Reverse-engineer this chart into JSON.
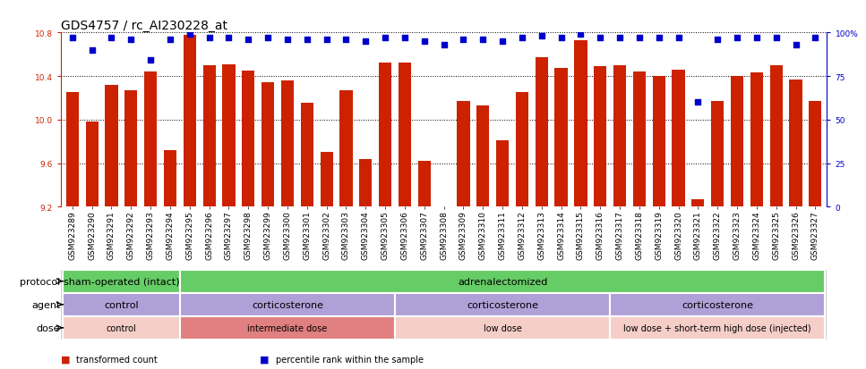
{
  "title": "GDS4757 / rc_AI230228_at",
  "samples": [
    "GSM923289",
    "GSM923290",
    "GSM923291",
    "GSM923292",
    "GSM923293",
    "GSM923294",
    "GSM923295",
    "GSM923296",
    "GSM923297",
    "GSM923298",
    "GSM923299",
    "GSM923300",
    "GSM923301",
    "GSM923302",
    "GSM923303",
    "GSM923304",
    "GSM923305",
    "GSM923306",
    "GSM923307",
    "GSM923308",
    "GSM923309",
    "GSM923310",
    "GSM923311",
    "GSM923312",
    "GSM923313",
    "GSM923314",
    "GSM923315",
    "GSM923316",
    "GSM923317",
    "GSM923318",
    "GSM923319",
    "GSM923320",
    "GSM923321",
    "GSM923322",
    "GSM923323",
    "GSM923324",
    "GSM923325",
    "GSM923326",
    "GSM923327"
  ],
  "bar_values": [
    10.25,
    9.98,
    10.32,
    10.27,
    10.44,
    9.72,
    10.78,
    10.5,
    10.51,
    10.45,
    10.34,
    10.36,
    10.15,
    9.7,
    10.27,
    9.64,
    10.52,
    10.52,
    9.62,
    9.2,
    10.17,
    10.13,
    9.81,
    10.25,
    10.57,
    10.47,
    10.73,
    10.49,
    10.5,
    10.44,
    10.4,
    10.46,
    9.27,
    10.17,
    10.4,
    10.43,
    10.5,
    10.37,
    10.17
  ],
  "percentile_values": [
    97,
    90,
    97,
    96,
    84,
    96,
    99,
    97,
    97,
    96,
    97,
    96,
    96,
    96,
    96,
    95,
    97,
    97,
    95,
    93,
    96,
    96,
    95,
    97,
    98,
    97,
    99,
    97,
    97,
    97,
    97,
    97,
    60,
    96,
    97,
    97,
    97,
    93,
    97
  ],
  "ylim": [
    9.2,
    10.8
  ],
  "yticks": [
    9.2,
    9.6,
    10.0,
    10.4,
    10.8
  ],
  "right_yticks": [
    0,
    25,
    50,
    75,
    100
  ],
  "bar_color": "#cc2200",
  "dot_color": "#0000cc",
  "bg_color": "#ffffff",
  "protocol_groups": [
    {
      "label": "sham-operated (intact)",
      "start": 0,
      "end": 6,
      "color": "#66cc66"
    },
    {
      "label": "adrenalectomized",
      "start": 6,
      "end": 39,
      "color": "#66cc66"
    }
  ],
  "agent_groups": [
    {
      "label": "control",
      "start": 0,
      "end": 6,
      "color": "#b0a0d8"
    },
    {
      "label": "corticosterone",
      "start": 6,
      "end": 17,
      "color": "#b0a0d8"
    },
    {
      "label": "corticosterone",
      "start": 17,
      "end": 28,
      "color": "#b0a0d8"
    },
    {
      "label": "corticosterone",
      "start": 28,
      "end": 39,
      "color": "#b0a0d8"
    }
  ],
  "dose_groups": [
    {
      "label": "control",
      "start": 0,
      "end": 6,
      "color": "#f5cec8"
    },
    {
      "label": "intermediate dose",
      "start": 6,
      "end": 17,
      "color": "#e08080"
    },
    {
      "label": "low dose",
      "start": 17,
      "end": 28,
      "color": "#f5cec8"
    },
    {
      "label": "low dose + short-term high dose (injected)",
      "start": 28,
      "end": 39,
      "color": "#f5cec8"
    }
  ],
  "legend_items": [
    {
      "label": "transformed count",
      "color": "#cc2200"
    },
    {
      "label": "percentile rank within the sample",
      "color": "#0000cc"
    }
  ],
  "title_fontsize": 10,
  "tick_fontsize": 6.5,
  "label_fontsize": 8,
  "annot_fontsize": 8,
  "bar_width": 0.65
}
